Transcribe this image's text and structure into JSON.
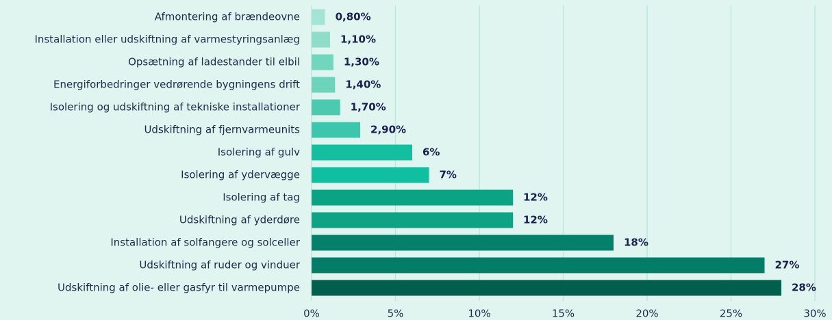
{
  "chart_data": {
    "type": "barh",
    "categories": [
      "Afmontering af brændeovne",
      "Installation eller udskiftning af varmestyringsanlæg",
      "Opsætning af ladestander til elbil",
      "Energiforbedringer vedrørende bygningens drift",
      "Isolering og udskiftning af tekniske installationer",
      "Udskiftning af fjernvarmeunits",
      "Isolering af gulv",
      "Isolering af ydervægge",
      "Isolering af tag",
      "Udskiftning af yderdøre",
      "Installation af solfangere og solceller",
      "Udskiftning af ruder og vinduer",
      "Udskiftning af olie- eller gasfyr til varmepumpe"
    ],
    "values": [
      0.8,
      1.1,
      1.3,
      1.4,
      1.7,
      2.9,
      6,
      7,
      12,
      12,
      18,
      27,
      28
    ],
    "value_labels": [
      "0,80%",
      "1,10%",
      "1,30%",
      "1,40%",
      "1,70%",
      "2,90%",
      "6%",
      "7%",
      "12%",
      "12%",
      "18%",
      "27%",
      "28%"
    ],
    "colors": [
      "#a3e4d4",
      "#8fdcc8",
      "#72d5bd",
      "#6dd3bb",
      "#4ccab0",
      "#3cc6ab",
      "#14bfa0",
      "#0fbfa0",
      "#0aa383",
      "#0fa385",
      "#06806a",
      "#047d68",
      "#025e4d"
    ],
    "xlim": [
      0,
      30
    ],
    "xticks": [
      {
        "value": 0,
        "label": "0%"
      },
      {
        "value": 5,
        "label": "5%"
      },
      {
        "value": 10,
        "label": "10%"
      },
      {
        "value": 15,
        "label": "15%"
      },
      {
        "value": 20,
        "label": "20%"
      },
      {
        "value": 25,
        "label": "25%"
      },
      {
        "value": 30,
        "label": "30%"
      }
    ],
    "grid": true
  }
}
